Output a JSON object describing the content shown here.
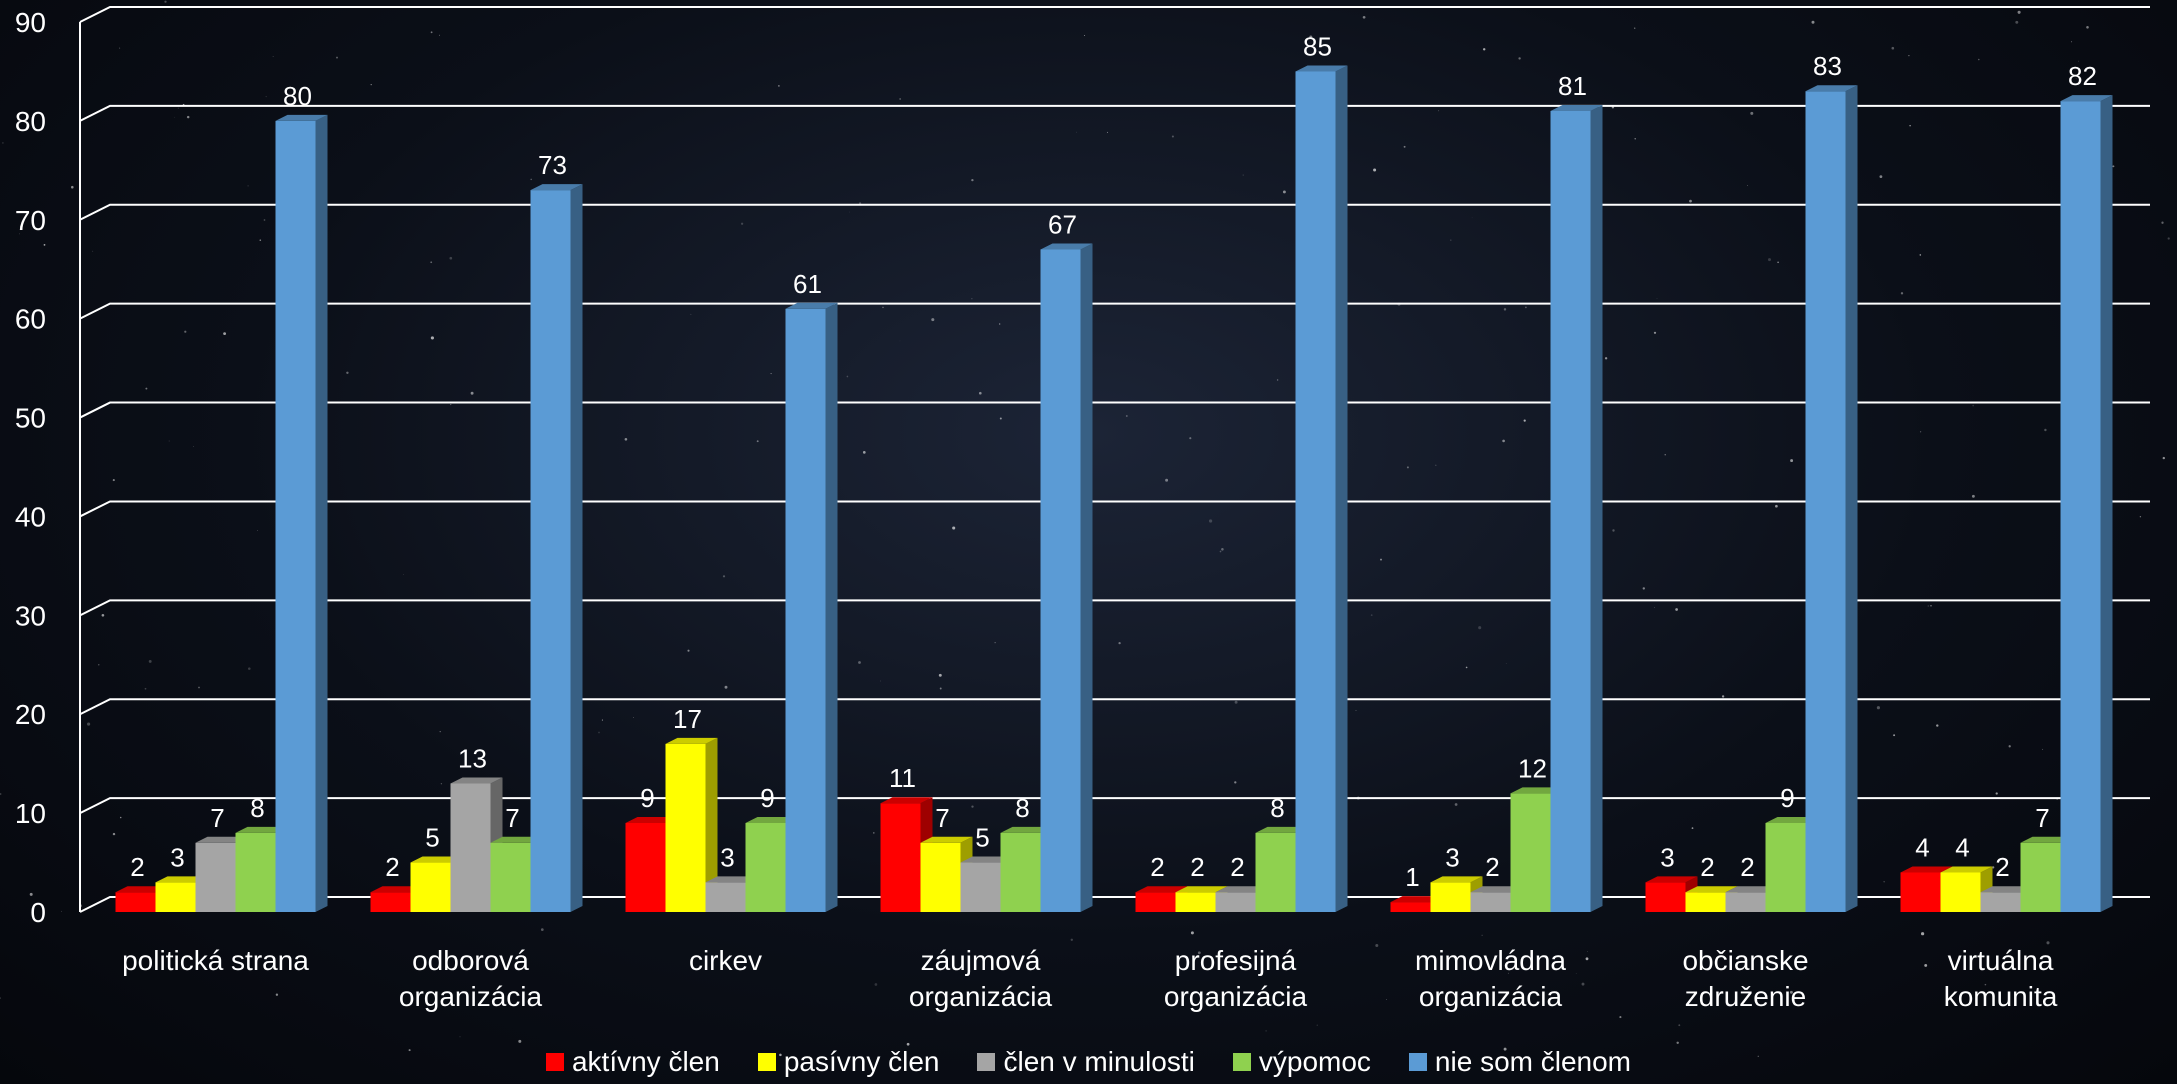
{
  "chart_data": {
    "type": "bar",
    "title": "",
    "xlabel": "",
    "ylabel": "",
    "ylim": [
      0,
      90
    ],
    "yticks": [
      0,
      10,
      20,
      30,
      40,
      50,
      60,
      70,
      80,
      90
    ],
    "grid": true,
    "legend_position": "bottom",
    "categories": [
      [
        "politická strana"
      ],
      [
        "odborová",
        "organizácia"
      ],
      [
        "cirkev"
      ],
      [
        "záujmová",
        "organizácia"
      ],
      [
        "profesijná",
        "organizácia"
      ],
      [
        "mimovládna",
        "organizácia"
      ],
      [
        "občianske",
        "združenie"
      ],
      [
        "virtuálna",
        "komunita"
      ]
    ],
    "series": [
      {
        "name": "aktívny člen",
        "color": "#ff0000",
        "values": [
          2,
          2,
          9,
          11,
          2,
          1,
          3,
          4
        ]
      },
      {
        "name": "pasívny člen",
        "color": "#ffff00",
        "values": [
          3,
          5,
          17,
          7,
          2,
          3,
          2,
          4
        ]
      },
      {
        "name": "člen v minulosti",
        "color": "#a5a5a5",
        "values": [
          7,
          13,
          3,
          5,
          2,
          2,
          2,
          2
        ]
      },
      {
        "name": "výpomoc",
        "color": "#8fd14f",
        "values": [
          8,
          7,
          9,
          8,
          8,
          12,
          9,
          7
        ]
      },
      {
        "name": "nie som členom",
        "color": "#5b9bd5",
        "values": [
          80,
          73,
          61,
          67,
          85,
          81,
          83,
          82
        ]
      }
    ]
  }
}
